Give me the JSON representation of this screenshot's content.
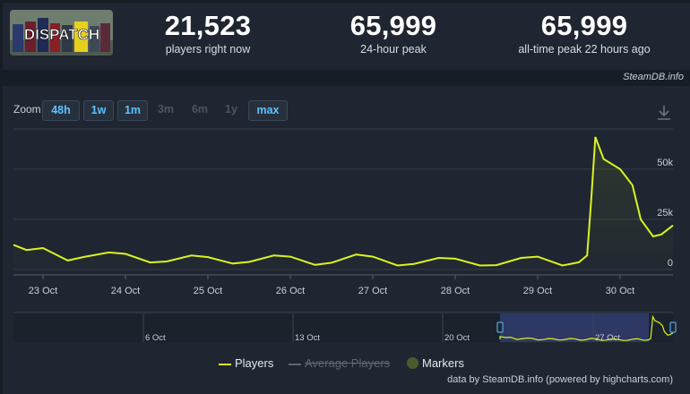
{
  "header": {
    "game_logo_text": "DISPATCH",
    "stats": [
      {
        "value": "21,523",
        "label": "players right now"
      },
      {
        "value": "65,999",
        "label": "24-hour peak"
      },
      {
        "value": "65,999",
        "label": "all-time peak 22 hours ago"
      }
    ],
    "credit": "SteamDB.info"
  },
  "zoom": {
    "label": "Zoom",
    "buttons": [
      {
        "label": "48h",
        "enabled": true
      },
      {
        "label": "1w",
        "enabled": true
      },
      {
        "label": "1m",
        "enabled": true
      },
      {
        "label": "3m",
        "enabled": false
      },
      {
        "label": "6m",
        "enabled": false
      },
      {
        "label": "1y",
        "enabled": false
      },
      {
        "label": "max",
        "enabled": true
      }
    ]
  },
  "legend": {
    "players": "Players",
    "average": "Average Players",
    "markers": "Markers"
  },
  "footer_credit": "data by SteamDB.info (powered by highcharts.com)",
  "navigator": {
    "tick_labels": [
      "6 Oct",
      "13 Oct",
      "20 Oct",
      "27 Oct"
    ]
  },
  "colors": {
    "series": "#d9f321",
    "accent": "#5cc2ff",
    "background": "#171d25",
    "panel": "#1f2631"
  },
  "icons": [
    "download-icon"
  ],
  "chart_data": {
    "type": "line",
    "title": "",
    "xlabel": "",
    "ylabel": "",
    "x_tick_labels": [
      "23 Oct",
      "24 Oct",
      "25 Oct",
      "26 Oct",
      "27 Oct",
      "28 Oct",
      "29 Oct",
      "30 Oct"
    ],
    "y_tick_labels": [
      "0",
      "25k",
      "50k"
    ],
    "ylim": [
      0,
      70000
    ],
    "grid": true,
    "legend_position": "bottom",
    "series": [
      {
        "name": "Players",
        "x": [
          22.5,
          22.8,
          23.0,
          23.3,
          23.5,
          23.8,
          24.0,
          24.3,
          24.5,
          24.8,
          25.0,
          25.3,
          25.5,
          25.8,
          26.0,
          26.3,
          26.5,
          26.8,
          27.0,
          27.3,
          27.5,
          27.8,
          28.0,
          28.3,
          28.5,
          28.8,
          29.0,
          29.3,
          29.5,
          29.6,
          29.65,
          29.7,
          29.8,
          30.0,
          30.15,
          30.25,
          30.4,
          30.5,
          30.65
        ],
        "y": [
          12300,
          9700,
          10700,
          4500,
          6300,
          8500,
          7800,
          3500,
          4000,
          7000,
          6200,
          3000,
          3800,
          7000,
          6400,
          2300,
          3400,
          7500,
          6400,
          2000,
          2800,
          5800,
          5400,
          2000,
          2200,
          5800,
          6400,
          2000,
          3600,
          7000,
          35000,
          65999,
          55000,
          50000,
          42000,
          25000,
          16500,
          17500,
          22000
        ]
      }
    ]
  }
}
